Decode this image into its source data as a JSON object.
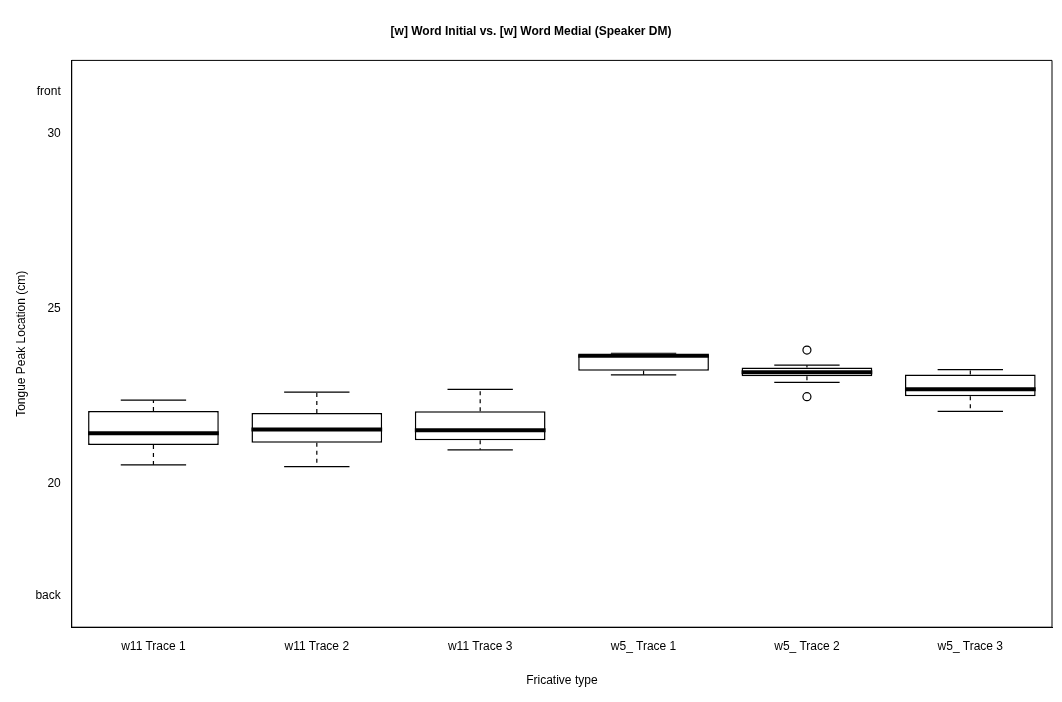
{
  "chart_data": {
    "type": "box",
    "title": "[w] Word Initial vs. [w] Word Medial (Speaker DM)",
    "xlabel": "Fricative type",
    "ylabel": "Tongue Peak Location (cm)",
    "categories": [
      "w11 Trace 1",
      "w11 Trace 2",
      "w11 Trace 3",
      "w5_ Trace 1",
      "w5_ Trace 2",
      "w5_ Trace 3"
    ],
    "boxes": [
      {
        "low": 20.54,
        "q1": 21.11,
        "median": 21.44,
        "q3": 22.08,
        "high": 22.39
      },
      {
        "low": 20.49,
        "q1": 21.17,
        "median": 21.55,
        "q3": 22.02,
        "high": 22.62
      },
      {
        "low": 20.97,
        "q1": 21.24,
        "median": 21.53,
        "q3": 22.07,
        "high": 22.7
      },
      {
        "low": 23.11,
        "q1": 23.23,
        "median": 23.66,
        "q3": 23.69,
        "high": 23.73
      },
      {
        "low": 22.9,
        "q1": 23.07,
        "median": 23.19,
        "q3": 23.32,
        "high": 23.39,
        "outliers": [
          23.82,
          22.49
        ]
      },
      {
        "low": 22.07,
        "q1": 22.5,
        "median": 22.7,
        "q3": 23.12,
        "high": 23.26
      }
    ],
    "ylim": [
      15.9,
      32.1
    ],
    "yticks": [
      {
        "value": 16.8,
        "label": "back"
      },
      20,
      25,
      30,
      {
        "value": 31.2,
        "label": "front"
      }
    ],
    "grid": false,
    "legend": false
  }
}
